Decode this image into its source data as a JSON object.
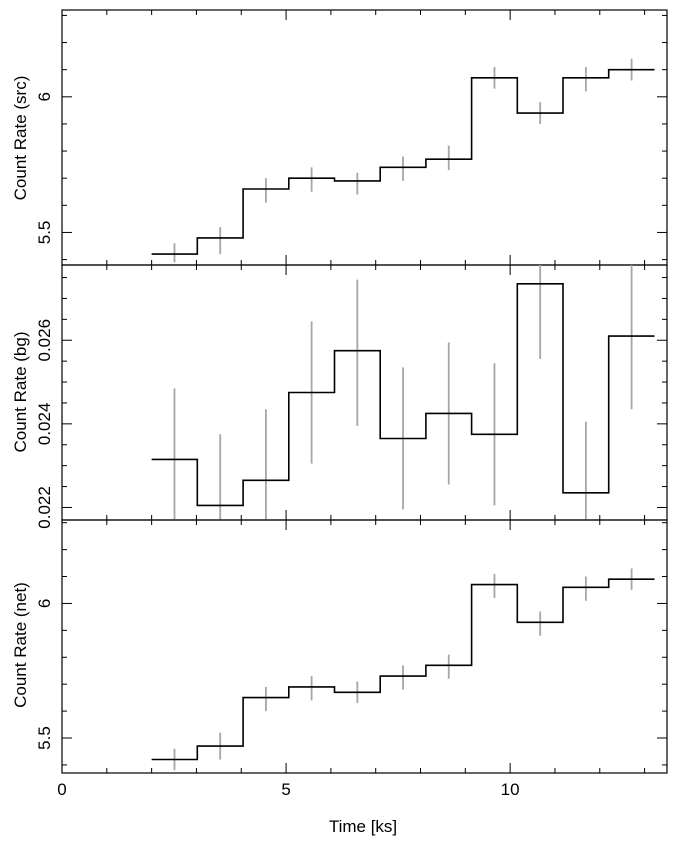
{
  "chart_data": [
    {
      "type": "line",
      "ylabel": "Count Rate (src)",
      "ylim": [
        5.38,
        6.32
      ],
      "yticks": [
        5.5,
        6.0
      ],
      "ytick_labels": [
        "5.5",
        "6"
      ],
      "y_minor_step": 0.1,
      "x_edges": [
        2.0,
        3.02,
        4.04,
        5.06,
        6.08,
        7.1,
        8.12,
        9.14,
        10.16,
        11.18,
        12.2,
        13.22
      ],
      "x_centers": [
        2.51,
        3.53,
        4.55,
        5.57,
        6.59,
        7.61,
        8.63,
        9.65,
        10.67,
        11.69,
        12.71
      ],
      "values": [
        5.42,
        5.48,
        5.66,
        5.7,
        5.69,
        5.74,
        5.77,
        6.07,
        5.94,
        6.07,
        6.1
      ],
      "err_low": [
        5.39,
        5.42,
        5.61,
        5.65,
        5.64,
        5.69,
        5.73,
        6.03,
        5.9,
        6.02,
        6.06
      ],
      "err_high": [
        5.46,
        5.52,
        5.7,
        5.74,
        5.72,
        5.78,
        5.82,
        6.11,
        5.98,
        6.11,
        6.14
      ]
    },
    {
      "type": "line",
      "ylabel": "Count Rate (bg)",
      "ylim": [
        0.0217,
        0.0278
      ],
      "yticks": [
        0.022,
        0.024,
        0.026
      ],
      "ytick_labels": [
        "0.022",
        "0.024",
        "0.026"
      ],
      "y_minor_step": 0.0005,
      "x_edges": [
        2.0,
        3.02,
        4.04,
        5.06,
        6.08,
        7.1,
        8.12,
        9.14,
        10.16,
        11.18,
        12.2,
        13.22
      ],
      "x_centers": [
        2.51,
        3.53,
        4.55,
        5.57,
        6.59,
        7.61,
        8.63,
        9.65,
        10.67,
        11.69,
        12.71
      ],
      "values": [
        0.02315,
        0.02205,
        0.02265,
        0.02475,
        0.02575,
        0.02365,
        0.02425,
        0.02375,
        0.02735,
        0.02235,
        0.0261
      ],
      "err_low": [
        0.0217,
        0.0217,
        0.0217,
        0.02305,
        0.02395,
        0.02195,
        0.02255,
        0.02205,
        0.02555,
        0.0217,
        0.02435
      ],
      "err_high": [
        0.02485,
        0.02375,
        0.02435,
        0.02645,
        0.02745,
        0.02535,
        0.02595,
        0.02545,
        0.0278,
        0.02405,
        0.0278
      ]
    },
    {
      "type": "line",
      "ylabel": "Count Rate (net)",
      "xlabel": "Time [ks]",
      "xlim": [
        0,
        13.5
      ],
      "xticks": [
        0,
        5,
        10
      ],
      "xtick_labels": [
        "0",
        "5",
        "10"
      ],
      "x_minor_step": 1,
      "ylim": [
        5.37,
        6.31
      ],
      "yticks": [
        5.5,
        6.0
      ],
      "ytick_labels": [
        "5.5",
        "6"
      ],
      "y_minor_step": 0.1,
      "x_edges": [
        2.0,
        3.02,
        4.04,
        5.06,
        6.08,
        7.1,
        8.12,
        9.14,
        10.16,
        11.18,
        12.2,
        13.22
      ],
      "x_centers": [
        2.51,
        3.53,
        4.55,
        5.57,
        6.59,
        7.61,
        8.63,
        9.65,
        10.67,
        11.69,
        12.71
      ],
      "values": [
        5.42,
        5.47,
        5.65,
        5.69,
        5.67,
        5.73,
        5.77,
        6.07,
        5.93,
        6.06,
        6.09
      ],
      "err_low": [
        5.38,
        5.42,
        5.6,
        5.64,
        5.63,
        5.68,
        5.72,
        6.02,
        5.88,
        6.01,
        6.05
      ],
      "err_high": [
        5.46,
        5.52,
        5.69,
        5.73,
        5.71,
        5.77,
        5.81,
        6.11,
        5.97,
        6.1,
        6.13
      ]
    }
  ]
}
